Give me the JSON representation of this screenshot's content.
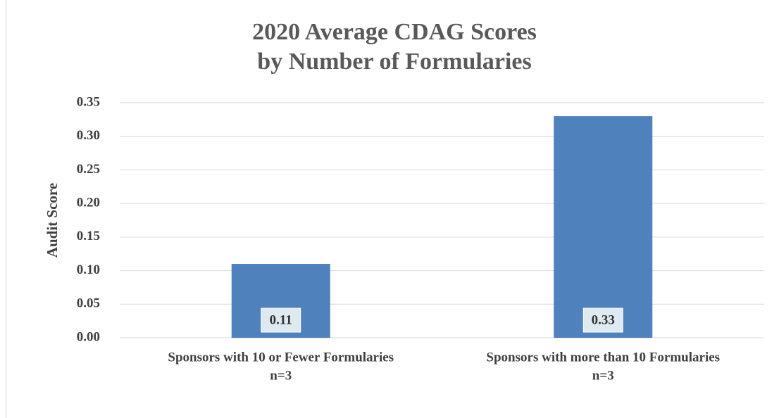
{
  "chart_data": {
    "type": "bar",
    "title": [
      "2020 Average CDAG Scores",
      "by Number of Formularies"
    ],
    "y_label": "Audit Score",
    "categories": [
      [
        "Sponsors with 10 or Fewer Formularies",
        "n=3"
      ],
      [
        "Sponsors with more than 10 Formularies",
        "n=3"
      ]
    ],
    "values": [
      0.11,
      0.33
    ],
    "color": "#4f81bd",
    "ylim": [
      0,
      0.35
    ],
    "yticks": [
      {
        "value": 0,
        "label": "0.00"
      },
      0.05,
      {
        "value": 0.1,
        "label": "0.10"
      },
      0.15,
      {
        "value": 0.2,
        "label": "0.20"
      },
      0.25,
      {
        "value": 0.3,
        "label": "0.30"
      },
      0.35
    ],
    "grid": true
  }
}
